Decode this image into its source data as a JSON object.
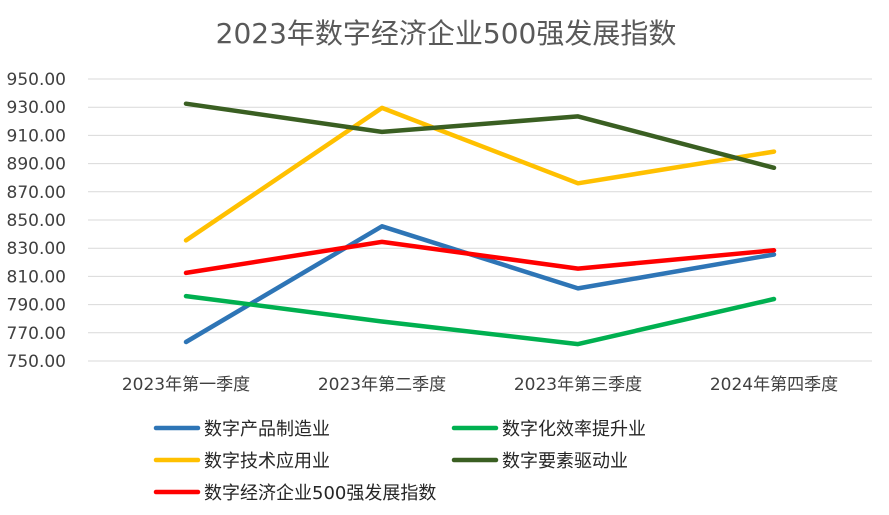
{
  "chart_data": {
    "type": "line",
    "title": "2023年数字经济企业500强发展指数",
    "xlabel": "",
    "ylabel": "",
    "categories": [
      "2023年第一季度",
      "2023年第二季度",
      "2023年第三季度",
      "2024年第四季度"
    ],
    "ylim": [
      750,
      950
    ],
    "yticks": [
      "750.00",
      "770.00",
      "790.00",
      "810.00",
      "830.00",
      "850.00",
      "870.00",
      "890.00",
      "910.00",
      "930.00",
      "950.00"
    ],
    "grid": true,
    "legend_position": "bottom",
    "series": [
      {
        "name": "数字产品制造业",
        "color": "#2E75B6",
        "values": [
          763.5,
          845.5,
          801.5,
          825.5
        ]
      },
      {
        "name": "数字化效率提升业",
        "color": "#00B050",
        "values": [
          796.0,
          778.0,
          762.0,
          794.0
        ]
      },
      {
        "name": "数字技术应用业",
        "color": "#FFC000",
        "values": [
          835.5,
          929.5,
          876.0,
          898.5
        ]
      },
      {
        "name": "数字要素驱动业",
        "color": "#3A5F22",
        "values": [
          932.5,
          912.5,
          923.5,
          887.0
        ]
      },
      {
        "name": "数字经济企业500强发展指数",
        "color": "#FF0000",
        "values": [
          812.5,
          834.5,
          815.5,
          828.5
        ]
      }
    ]
  }
}
